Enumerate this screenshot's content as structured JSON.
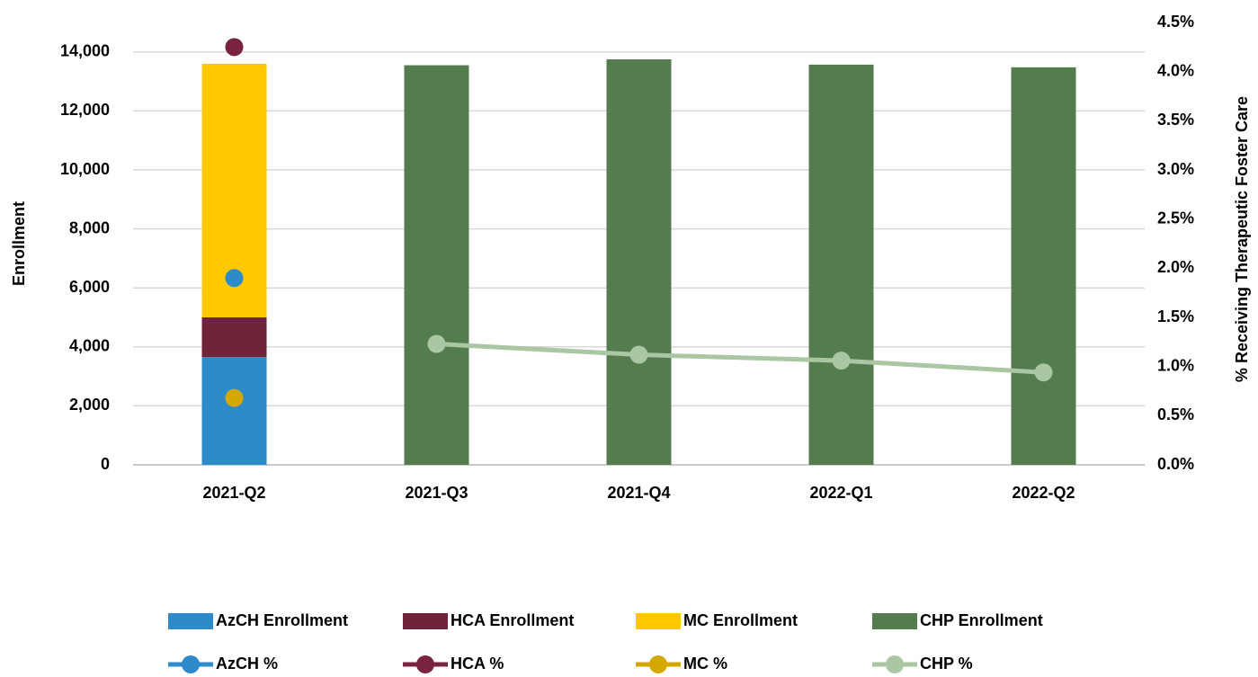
{
  "chart_data": {
    "type": "bar",
    "categories": [
      "2021-Q2",
      "2021-Q3",
      "2021-Q4",
      "2022-Q1",
      "2022-Q2"
    ],
    "ylabel": "Enrollment",
    "y2label": "% Receiving Therapeutic Foster Care",
    "ylim": [
      0,
      15000
    ],
    "yticks": [
      0,
      {
        "value": 2000,
        "label": "2,000"
      },
      {
        "value": 4000,
        "label": "4,000"
      },
      {
        "value": 6000,
        "label": "6,000"
      },
      {
        "value": 8000,
        "label": "8,000"
      },
      {
        "value": 10000,
        "label": "10,000"
      },
      {
        "value": 12000,
        "label": "12,000"
      },
      {
        "value": 14000,
        "label": "14,000"
      }
    ],
    "y2lim": [
      0,
      4.5
    ],
    "y2ticks": [
      {
        "value": 0,
        "label": "0.0%"
      },
      {
        "value": 0.5,
        "label": "0.5%"
      },
      {
        "value": 1,
        "label": "1.0%"
      },
      {
        "value": 1.5,
        "label": "1.5%"
      },
      {
        "value": 2,
        "label": "2.0%"
      },
      {
        "value": 2.5,
        "label": "2.5%"
      },
      {
        "value": 3,
        "label": "3.0%"
      },
      {
        "value": 3.5,
        "label": "3.5%"
      },
      {
        "value": 4,
        "label": "4.0%"
      },
      {
        "value": 4.5,
        "label": "4.5%"
      }
    ],
    "grid": true,
    "legend": "bottom",
    "series": [
      {
        "name": "AzCH Enrollment",
        "type": "bar",
        "color": "#2e8bcb",
        "values": [
          3650,
          null,
          null,
          null,
          null
        ]
      },
      {
        "name": "HCA Enrollment",
        "type": "bar",
        "color": "#70243a",
        "values": [
          1350,
          null,
          null,
          null,
          null
        ]
      },
      {
        "name": "MC Enrollment",
        "type": "bar",
        "color": "#ffc800",
        "values": [
          8600,
          null,
          null,
          null,
          null
        ]
      },
      {
        "name": "CHP Enrollment",
        "type": "bar",
        "color": "#557c4f",
        "values": [
          null,
          13550,
          13750,
          13570,
          13480
        ]
      },
      {
        "name": "AzCH %",
        "type": "line",
        "axis": "y2",
        "color": "#2e8bcb",
        "values": [
          1.9,
          null,
          null,
          null,
          null
        ]
      },
      {
        "name": "HCA %",
        "type": "line",
        "axis": "y2",
        "color": "#7a2340",
        "values": [
          4.25,
          null,
          null,
          null,
          null
        ]
      },
      {
        "name": "MC %",
        "type": "line",
        "axis": "y2",
        "color": "#d4a800",
        "values": [
          0.68,
          null,
          null,
          null,
          null
        ]
      },
      {
        "name": "CHP %",
        "type": "line",
        "axis": "y2",
        "color": "#a9c7a2",
        "values": [
          null,
          1.23,
          1.12,
          1.06,
          0.94
        ]
      }
    ]
  }
}
